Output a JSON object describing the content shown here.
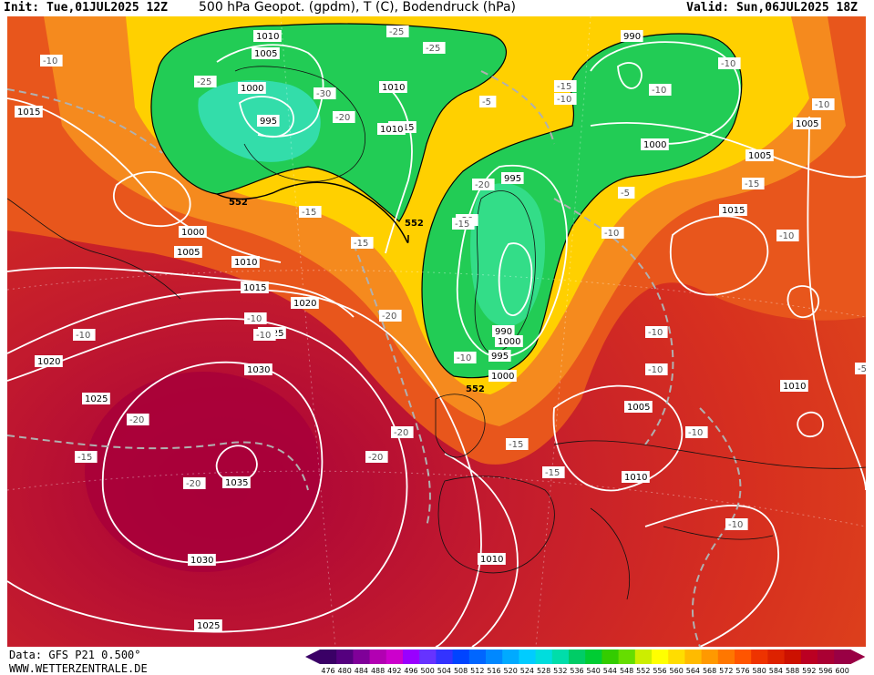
{
  "header": {
    "init": "Init: Tue,01JUL2025 12Z",
    "title": "500 hPa Geopot. (gpdm), T (C), Bodendruck (hPa)",
    "valid": "Valid: Sun,06JUL2025 18Z"
  },
  "footer": {
    "data_source": "Data: GFS P21 0.500°",
    "website": "WWW.WETTERZENTRALE.DE"
  },
  "colors": {
    "warm_dark": "#c21a2e",
    "warm_mid": "#d7301f",
    "orange": "#ef6e1d",
    "light_orange": "#f7a21d",
    "yellow": "#fff200",
    "light_green": "#33cc33",
    "green": "#00cc55",
    "cyan_green": "#22dd99",
    "high_core": "#a8003a"
  },
  "scale": {
    "levels": [
      "476",
      "480",
      "484",
      "488",
      "492",
      "496",
      "500",
      "504",
      "508",
      "512",
      "516",
      "520",
      "524",
      "528",
      "532",
      "536",
      "540",
      "544",
      "548",
      "552",
      "556",
      "560",
      "564",
      "568",
      "572",
      "576",
      "580",
      "584",
      "588",
      "592",
      "596",
      "600"
    ],
    "colors": [
      "#3a0066",
      "#55007f",
      "#7f0099",
      "#b200b2",
      "#cc00cc",
      "#9900ff",
      "#6633ff",
      "#3333ff",
      "#0044ff",
      "#0066ff",
      "#0088ff",
      "#00aaff",
      "#00ccff",
      "#00dddd",
      "#00ddaa",
      "#00cc66",
      "#00cc33",
      "#33cc00",
      "#66dd00",
      "#ccee00",
      "#ffff00",
      "#ffdd00",
      "#ffbb00",
      "#ff9900",
      "#ff7700",
      "#ff5500",
      "#ee3300",
      "#dd2200",
      "#cc1100",
      "#bb0022",
      "#aa0033",
      "#990044"
    ]
  },
  "isobar_labels": [
    "1015",
    "1010",
    "1005",
    "1000",
    "995",
    "1010",
    "1015",
    "1000",
    "1005",
    "1010",
    "1015",
    "1020",
    "1025",
    "1030",
    "1035",
    "1025",
    "1020",
    "1010",
    "995",
    "1000",
    "990",
    "995",
    "1000",
    "1005",
    "1010",
    "1015",
    "1005",
    "1010",
    "1010",
    "1005",
    "1030",
    "1025",
    "1000",
    "990"
  ],
  "temp_labels": [
    "-10",
    "-25",
    "-25",
    "-25",
    "-30",
    "-20",
    "-15",
    "-15",
    "-20",
    "-20",
    "-15",
    "-10",
    "-10",
    "-10",
    "-15",
    "-20",
    "-20",
    "-20",
    "-20",
    "-15",
    "-15",
    "-10",
    "-10",
    "-10",
    "-10",
    "-5",
    "-5",
    "-15",
    "-10",
    "-10",
    "-10",
    "-10",
    "-5",
    "-10",
    "-10",
    "-20",
    "-15",
    "-10"
  ],
  "height_labels": [
    "552",
    "552",
    "552"
  ]
}
